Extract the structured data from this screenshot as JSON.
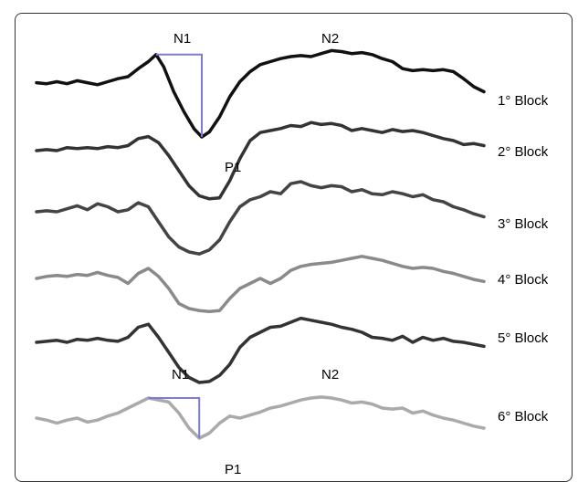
{
  "chart_data": {
    "type": "line",
    "series": [
      {
        "name": "1° Block",
        "color": "#111111",
        "points": [
          [
            0.0,
            0.04
          ],
          [
            0.02,
            0.03
          ],
          [
            0.04,
            0.05
          ],
          [
            0.06,
            0.03
          ],
          [
            0.08,
            0.06
          ],
          [
            0.1,
            0.04
          ],
          [
            0.12,
            0.02
          ],
          [
            0.14,
            0.05
          ],
          [
            0.16,
            0.08
          ],
          [
            0.18,
            0.1
          ],
          [
            0.2,
            0.18
          ],
          [
            0.22,
            0.25
          ],
          [
            0.235,
            0.32
          ],
          [
            0.25,
            0.2
          ],
          [
            0.27,
            -0.05
          ],
          [
            0.29,
            -0.25
          ],
          [
            0.31,
            -0.42
          ],
          [
            0.325,
            -0.5
          ],
          [
            0.34,
            -0.45
          ],
          [
            0.36,
            -0.3
          ],
          [
            0.38,
            -0.1
          ],
          [
            0.4,
            0.05
          ],
          [
            0.42,
            0.15
          ],
          [
            0.44,
            0.22
          ],
          [
            0.46,
            0.25
          ],
          [
            0.48,
            0.28
          ],
          [
            0.5,
            0.3
          ],
          [
            0.52,
            0.31
          ],
          [
            0.54,
            0.3
          ],
          [
            0.56,
            0.33
          ],
          [
            0.58,
            0.36
          ],
          [
            0.6,
            0.35
          ],
          [
            0.62,
            0.33
          ],
          [
            0.64,
            0.34
          ],
          [
            0.66,
            0.32
          ],
          [
            0.68,
            0.28
          ],
          [
            0.7,
            0.25
          ],
          [
            0.72,
            0.18
          ],
          [
            0.74,
            0.16
          ],
          [
            0.76,
            0.17
          ],
          [
            0.78,
            0.16
          ],
          [
            0.8,
            0.17
          ],
          [
            0.82,
            0.15
          ],
          [
            0.84,
            0.08
          ],
          [
            0.86,
            0.0
          ],
          [
            0.88,
            -0.05
          ]
        ]
      },
      {
        "name": "2° Block",
        "color": "#333333",
        "points": [
          [
            0.0,
            0.0
          ],
          [
            0.02,
            0.01
          ],
          [
            0.04,
            0.0
          ],
          [
            0.06,
            0.03
          ],
          [
            0.08,
            0.02
          ],
          [
            0.1,
            0.03
          ],
          [
            0.12,
            0.02
          ],
          [
            0.14,
            0.04
          ],
          [
            0.16,
            0.03
          ],
          [
            0.18,
            0.05
          ],
          [
            0.2,
            0.12
          ],
          [
            0.22,
            0.14
          ],
          [
            0.24,
            0.08
          ],
          [
            0.26,
            -0.05
          ],
          [
            0.28,
            -0.2
          ],
          [
            0.3,
            -0.35
          ],
          [
            0.32,
            -0.45
          ],
          [
            0.34,
            -0.48
          ],
          [
            0.36,
            -0.47
          ],
          [
            0.38,
            -0.3
          ],
          [
            0.4,
            -0.08
          ],
          [
            0.42,
            0.1
          ],
          [
            0.44,
            0.18
          ],
          [
            0.46,
            0.2
          ],
          [
            0.48,
            0.22
          ],
          [
            0.5,
            0.25
          ],
          [
            0.52,
            0.24
          ],
          [
            0.54,
            0.28
          ],
          [
            0.56,
            0.26
          ],
          [
            0.58,
            0.27
          ],
          [
            0.6,
            0.25
          ],
          [
            0.62,
            0.2
          ],
          [
            0.64,
            0.22
          ],
          [
            0.66,
            0.2
          ],
          [
            0.68,
            0.18
          ],
          [
            0.7,
            0.21
          ],
          [
            0.72,
            0.19
          ],
          [
            0.74,
            0.2
          ],
          [
            0.76,
            0.18
          ],
          [
            0.78,
            0.15
          ],
          [
            0.8,
            0.12
          ],
          [
            0.82,
            0.1
          ],
          [
            0.84,
            0.06
          ],
          [
            0.86,
            0.07
          ],
          [
            0.88,
            0.05
          ]
        ]
      },
      {
        "name": "3° Block",
        "color": "#444444",
        "points": [
          [
            0.0,
            0.0
          ],
          [
            0.02,
            0.01
          ],
          [
            0.04,
            0.0
          ],
          [
            0.06,
            0.03
          ],
          [
            0.08,
            0.06
          ],
          [
            0.1,
            0.02
          ],
          [
            0.12,
            0.08
          ],
          [
            0.14,
            0.05
          ],
          [
            0.16,
            0.0
          ],
          [
            0.18,
            0.02
          ],
          [
            0.2,
            0.09
          ],
          [
            0.22,
            0.05
          ],
          [
            0.24,
            -0.1
          ],
          [
            0.26,
            -0.25
          ],
          [
            0.28,
            -0.35
          ],
          [
            0.3,
            -0.4
          ],
          [
            0.32,
            -0.42
          ],
          [
            0.34,
            -0.38
          ],
          [
            0.36,
            -0.28
          ],
          [
            0.38,
            -0.1
          ],
          [
            0.4,
            0.05
          ],
          [
            0.42,
            0.12
          ],
          [
            0.44,
            0.15
          ],
          [
            0.46,
            0.2
          ],
          [
            0.48,
            0.18
          ],
          [
            0.5,
            0.28
          ],
          [
            0.52,
            0.3
          ],
          [
            0.54,
            0.26
          ],
          [
            0.56,
            0.24
          ],
          [
            0.58,
            0.26
          ],
          [
            0.6,
            0.25
          ],
          [
            0.62,
            0.2
          ],
          [
            0.64,
            0.22
          ],
          [
            0.66,
            0.18
          ],
          [
            0.68,
            0.17
          ],
          [
            0.7,
            0.2
          ],
          [
            0.72,
            0.18
          ],
          [
            0.74,
            0.15
          ],
          [
            0.76,
            0.17
          ],
          [
            0.78,
            0.12
          ],
          [
            0.8,
            0.1
          ],
          [
            0.82,
            0.05
          ],
          [
            0.84,
            0.02
          ],
          [
            0.86,
            -0.02
          ],
          [
            0.88,
            -0.05
          ]
        ]
      },
      {
        "name": "4° Block",
        "color": "#8a8a8a",
        "points": [
          [
            0.0,
            0.0
          ],
          [
            0.02,
            0.02
          ],
          [
            0.04,
            0.03
          ],
          [
            0.06,
            0.02
          ],
          [
            0.08,
            0.04
          ],
          [
            0.1,
            0.03
          ],
          [
            0.12,
            0.06
          ],
          [
            0.14,
            0.03
          ],
          [
            0.16,
            0.01
          ],
          [
            0.18,
            -0.05
          ],
          [
            0.2,
            0.05
          ],
          [
            0.22,
            0.1
          ],
          [
            0.24,
            0.02
          ],
          [
            0.26,
            -0.1
          ],
          [
            0.28,
            -0.25
          ],
          [
            0.3,
            -0.3
          ],
          [
            0.32,
            -0.32
          ],
          [
            0.34,
            -0.33
          ],
          [
            0.36,
            -0.32
          ],
          [
            0.38,
            -0.2
          ],
          [
            0.4,
            -0.1
          ],
          [
            0.42,
            -0.05
          ],
          [
            0.44,
            0.0
          ],
          [
            0.46,
            -0.05
          ],
          [
            0.48,
            0.0
          ],
          [
            0.5,
            0.08
          ],
          [
            0.52,
            0.12
          ],
          [
            0.54,
            0.14
          ],
          [
            0.56,
            0.15
          ],
          [
            0.58,
            0.16
          ],
          [
            0.6,
            0.18
          ],
          [
            0.62,
            0.2
          ],
          [
            0.64,
            0.22
          ],
          [
            0.66,
            0.2
          ],
          [
            0.68,
            0.18
          ],
          [
            0.7,
            0.15
          ],
          [
            0.72,
            0.12
          ],
          [
            0.74,
            0.1
          ],
          [
            0.76,
            0.11
          ],
          [
            0.78,
            0.1
          ],
          [
            0.8,
            0.07
          ],
          [
            0.82,
            0.05
          ],
          [
            0.84,
            0.02
          ],
          [
            0.86,
            -0.01
          ],
          [
            0.88,
            -0.03
          ]
        ]
      },
      {
        "name": "5° Block",
        "color": "#333333",
        "points": [
          [
            0.0,
            0.0
          ],
          [
            0.02,
            0.01
          ],
          [
            0.04,
            0.02
          ],
          [
            0.06,
            0.0
          ],
          [
            0.08,
            0.03
          ],
          [
            0.1,
            0.02
          ],
          [
            0.12,
            0.04
          ],
          [
            0.14,
            0.02
          ],
          [
            0.16,
            0.01
          ],
          [
            0.18,
            0.05
          ],
          [
            0.2,
            0.15
          ],
          [
            0.22,
            0.18
          ],
          [
            0.24,
            0.05
          ],
          [
            0.26,
            -0.1
          ],
          [
            0.28,
            -0.25
          ],
          [
            0.3,
            -0.35
          ],
          [
            0.32,
            -0.4
          ],
          [
            0.34,
            -0.39
          ],
          [
            0.36,
            -0.33
          ],
          [
            0.38,
            -0.22
          ],
          [
            0.4,
            -0.05
          ],
          [
            0.42,
            0.05
          ],
          [
            0.44,
            0.1
          ],
          [
            0.46,
            0.15
          ],
          [
            0.48,
            0.16
          ],
          [
            0.5,
            0.2
          ],
          [
            0.52,
            0.24
          ],
          [
            0.54,
            0.22
          ],
          [
            0.56,
            0.2
          ],
          [
            0.58,
            0.18
          ],
          [
            0.6,
            0.15
          ],
          [
            0.62,
            0.13
          ],
          [
            0.64,
            0.1
          ],
          [
            0.66,
            0.05
          ],
          [
            0.68,
            0.04
          ],
          [
            0.7,
            0.02
          ],
          [
            0.72,
            0.06
          ],
          [
            0.74,
            0.0
          ],
          [
            0.76,
            0.05
          ],
          [
            0.78,
            0.02
          ],
          [
            0.8,
            0.04
          ],
          [
            0.82,
            0.01
          ],
          [
            0.84,
            0.0
          ],
          [
            0.86,
            -0.02
          ],
          [
            0.88,
            -0.04
          ]
        ]
      },
      {
        "name": "6° Block",
        "color": "#aaaaaa",
        "points": [
          [
            0.0,
            0.0
          ],
          [
            0.02,
            -0.02
          ],
          [
            0.04,
            -0.05
          ],
          [
            0.06,
            -0.02
          ],
          [
            0.08,
            0.0
          ],
          [
            0.1,
            -0.04
          ],
          [
            0.12,
            -0.02
          ],
          [
            0.14,
            0.02
          ],
          [
            0.16,
            0.05
          ],
          [
            0.18,
            0.1
          ],
          [
            0.2,
            0.15
          ],
          [
            0.22,
            0.2
          ],
          [
            0.24,
            0.18
          ],
          [
            0.26,
            0.16
          ],
          [
            0.28,
            0.05
          ],
          [
            0.3,
            -0.1
          ],
          [
            0.32,
            -0.2
          ],
          [
            0.34,
            -0.15
          ],
          [
            0.36,
            -0.05
          ],
          [
            0.38,
            0.02
          ],
          [
            0.4,
            0.0
          ],
          [
            0.42,
            0.03
          ],
          [
            0.44,
            0.06
          ],
          [
            0.46,
            0.1
          ],
          [
            0.48,
            0.12
          ],
          [
            0.5,
            0.15
          ],
          [
            0.52,
            0.18
          ],
          [
            0.54,
            0.2
          ],
          [
            0.56,
            0.21
          ],
          [
            0.58,
            0.2
          ],
          [
            0.6,
            0.18
          ],
          [
            0.62,
            0.15
          ],
          [
            0.64,
            0.16
          ],
          [
            0.66,
            0.14
          ],
          [
            0.68,
            0.1
          ],
          [
            0.7,
            0.09
          ],
          [
            0.72,
            0.1
          ],
          [
            0.74,
            0.05
          ],
          [
            0.76,
            0.07
          ],
          [
            0.78,
            0.03
          ],
          [
            0.8,
            0.0
          ],
          [
            0.82,
            -0.02
          ],
          [
            0.84,
            -0.05
          ],
          [
            0.86,
            -0.08
          ],
          [
            0.88,
            -0.1
          ]
        ]
      }
    ],
    "annotations": [
      {
        "text": "N1",
        "series": "1° Block"
      },
      {
        "text": "N2",
        "series": "1° Block"
      },
      {
        "text": "P1",
        "series": "1° Block"
      },
      {
        "text": "N1",
        "series": "6° Block"
      },
      {
        "text": "N2",
        "series": "6° Block"
      },
      {
        "text": "P1",
        "series": "6° Block"
      }
    ],
    "annotation_color": "#7a7ae0"
  },
  "labels": {
    "top_n1": "N1",
    "top_n2": "N2",
    "top_p1": "P1",
    "bottom_n1": "N1",
    "bottom_n2": "N2",
    "bottom_p1": "P1",
    "block1": "1° Block",
    "block2": "2° Block",
    "block3": "3° Block",
    "block4": "4° Block",
    "block5": "5° Block",
    "block6": "6° Block"
  }
}
